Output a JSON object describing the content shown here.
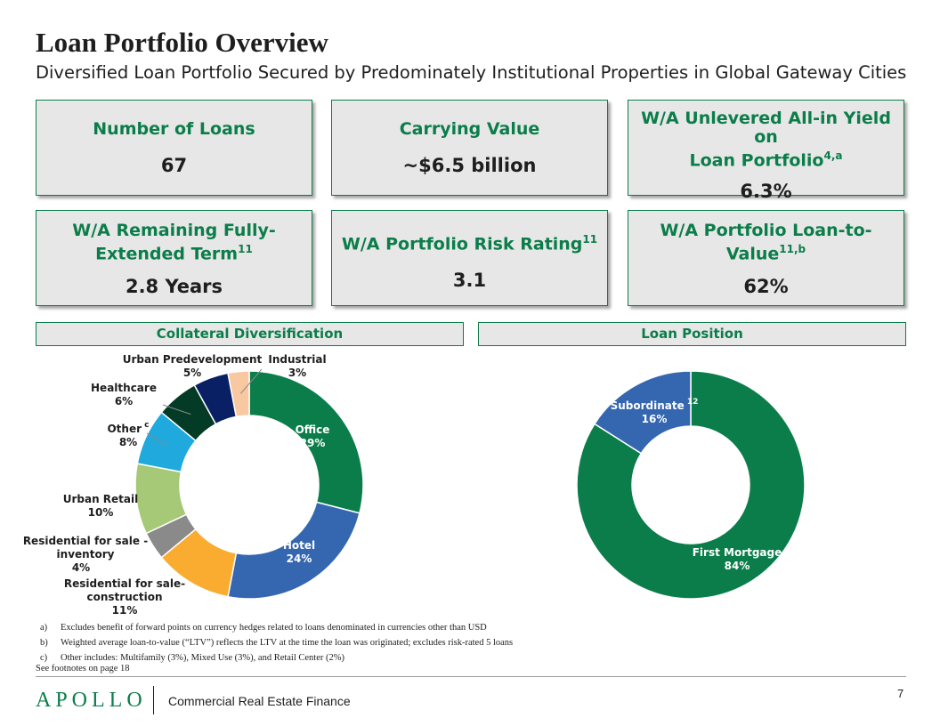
{
  "title": "Loan Portfolio Overview",
  "subtitle": "Diversified Loan Portfolio Secured by Predominately Institutional Properties in Global Gateway Cities",
  "colors": {
    "accent": "#0b7d4a",
    "card_bg": "#e7e7e7"
  },
  "cards": [
    {
      "label": "Number of Loans",
      "sup": "",
      "value": "67"
    },
    {
      "label": "Carrying Value",
      "sup": "",
      "value": "~$6.5 billion"
    },
    {
      "label_line1": "W/A Unlevered All-in Yield on",
      "label_line2": "Loan Portfolio",
      "sup": "4,a",
      "value": "6.3%"
    },
    {
      "label_line1": "W/A Remaining Fully-",
      "label_line2": "Extended Term",
      "sup": "11",
      "value": "2.8 Years"
    },
    {
      "label": "W/A Portfolio Risk Rating",
      "sup": "11",
      "value": "3.1"
    },
    {
      "label_line1": "W/A Portfolio Loan-to-",
      "label_line2": "Value",
      "sup": "11,b",
      "value": "62%"
    }
  ],
  "sections": {
    "collateral": "Collateral Diversification",
    "position": "Loan Position"
  },
  "chart_data": [
    {
      "type": "pie",
      "donut": true,
      "title": "Collateral Diversification",
      "slices": [
        {
          "name": "Office",
          "value": 29,
          "label": "29%",
          "color": "#0b7d4a"
        },
        {
          "name": "Hotel",
          "value": 24,
          "label": "24%",
          "color": "#3566b0"
        },
        {
          "name": "Residential for sale-construction",
          "value": 11,
          "label": "11%",
          "color": "#f9ac2f"
        },
        {
          "name": "Residential for sale - inventory",
          "value": 4,
          "label": "4%",
          "color": "#8a8a8a"
        },
        {
          "name": "Urban Retail",
          "value": 10,
          "label": "10%",
          "color": "#a5c976"
        },
        {
          "name": "Other",
          "value": 8,
          "label": "8%",
          "color": "#1fa9dc",
          "note": "c"
        },
        {
          "name": "Healthcare",
          "value": 6,
          "label": "6%",
          "color": "#043b26"
        },
        {
          "name": "Urban Predevelopment",
          "value": 5,
          "label": "5%",
          "color": "#0a2064"
        },
        {
          "name": "Industrial",
          "value": 3,
          "label": "3%",
          "color": "#f8c8a1"
        }
      ]
    },
    {
      "type": "pie",
      "donut": true,
      "title": "Loan Position",
      "slices": [
        {
          "name": "First Mortgage",
          "value": 84,
          "label": "84%",
          "color": "#0b7d4a"
        },
        {
          "name": "Subordinate",
          "value": 16,
          "label": "16%",
          "color": "#3566b0",
          "note": "12"
        }
      ]
    }
  ],
  "footnotes": [
    {
      "label": "a)",
      "text": "Excludes benefit of forward points on currency hedges related to loans denominated in currencies other than USD"
    },
    {
      "label": "b)",
      "text": "Weighted average loan-to-value (“LTV”) reflects the LTV at the time the loan was originated; excludes risk-rated 5 loans"
    },
    {
      "label": "c)",
      "text": "Other includes: Multifamily (3%), Mixed Use (3%), and Retail Center (2%)"
    }
  ],
  "see_footnotes": "See footnotes on page 18",
  "footer": {
    "logo": "APOLLO",
    "tagline": "Commercial Real Estate Finance",
    "page": "7"
  }
}
